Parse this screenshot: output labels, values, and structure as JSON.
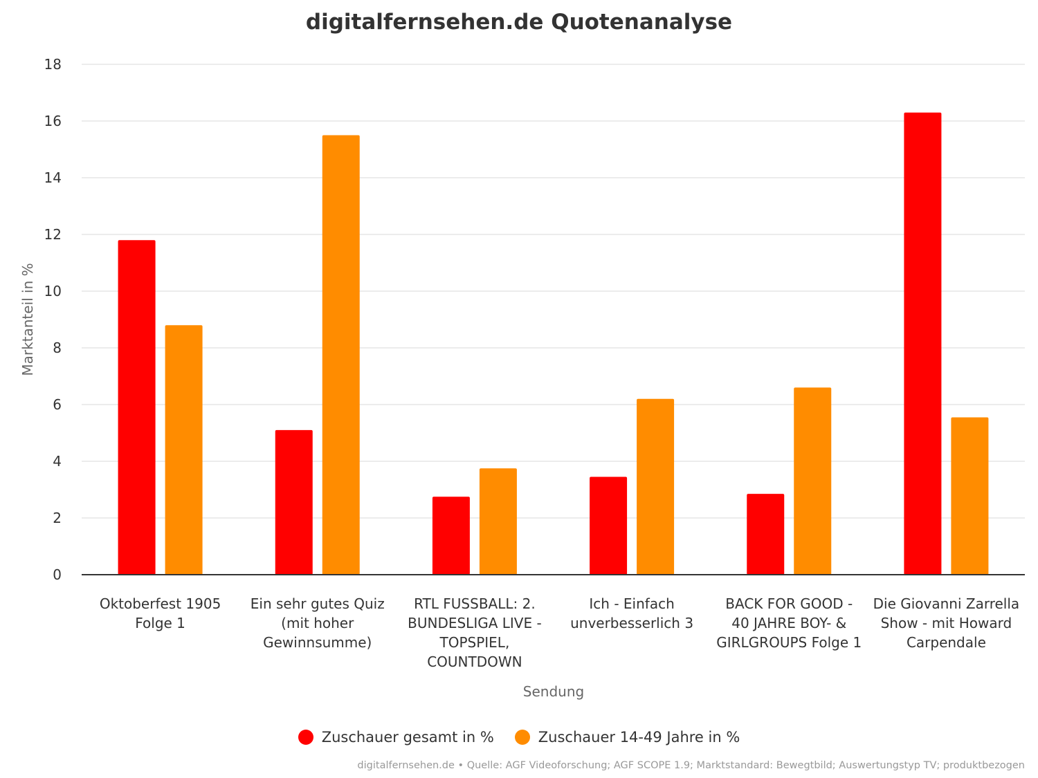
{
  "chart_data": {
    "type": "bar",
    "title": "digitalfernsehen.de Quotenanalyse",
    "xlabel": "Sendung",
    "ylabel": "Marktanteil in %",
    "ylim": [
      0,
      18
    ],
    "yticks": [
      0,
      2,
      4,
      6,
      8,
      10,
      12,
      14,
      16,
      18
    ],
    "grid": true,
    "legend_position": "bottom",
    "categories": [
      [
        "Oktoberfest 1905",
        "Folge 1"
      ],
      [
        "Ein sehr gutes Quiz",
        "(mit hoher",
        "Gewinnsumme)"
      ],
      [
        "RTL FUSSBALL: 2.",
        "BUNDESLIGA LIVE -",
        "TOPSPIEL,",
        "COUNTDOWN"
      ],
      [
        "Ich - Einfach",
        "unverbesserlich 3"
      ],
      [
        "BACK FOR GOOD -",
        "40 JAHRE BOY- &",
        "GIRLGROUPS Folge 1"
      ],
      [
        "Die Giovanni Zarrella",
        "Show - mit Howard",
        "Carpendale"
      ]
    ],
    "series": [
      {
        "name": "Zuschauer gesamt in %",
        "color": "#ff0000",
        "values": [
          11.8,
          5.1,
          2.75,
          3.45,
          2.85,
          16.3
        ]
      },
      {
        "name": "Zuschauer 14-49 Jahre in %",
        "color": "#ff8c00",
        "values": [
          8.8,
          15.5,
          3.75,
          6.2,
          6.6,
          5.55
        ]
      }
    ],
    "credits": "digitalfernsehen.de • Quelle: AGF Videoforschung; AGF SCOPE 1.9; Marktstandard: Bewegtbild; Auswertungstyp TV; produktbezogen"
  }
}
